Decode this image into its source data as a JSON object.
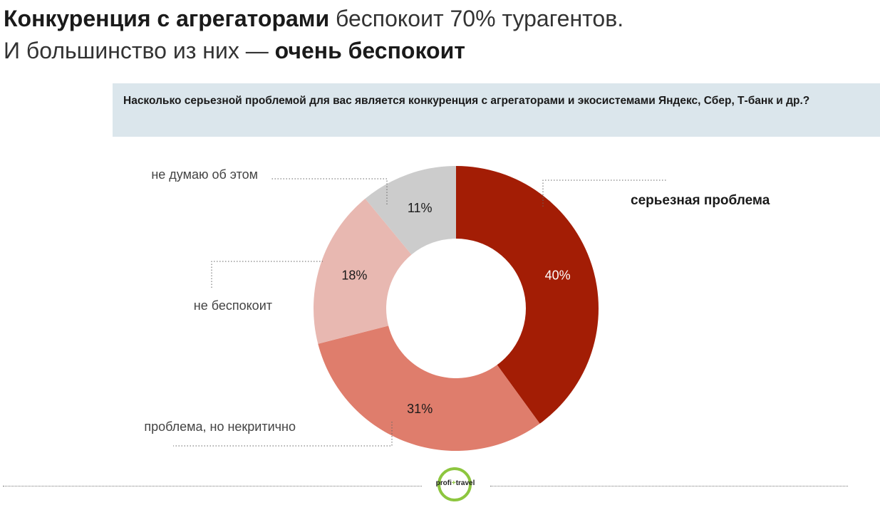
{
  "headline": {
    "line1_bold": "Конкуренция с агрегаторами",
    "line1_rest": " беспокоит 70% турагентов.",
    "line2_rest": "И большинство из них — ",
    "line2_bold": "очень беспокоит"
  },
  "question": "Насколько серьезной проблемой для вас является конкуренция с агрегаторами и экосистемами Яндекс, Сбер, Т-банк и др.?",
  "chart_data": {
    "type": "pie",
    "variant": "donut",
    "categories": [
      "серьезная проблема",
      "проблема, но некритично",
      "не беспокоит",
      "не думаю об этом"
    ],
    "values": [
      40,
      31,
      18,
      11
    ],
    "value_labels": [
      "40%",
      "31%",
      "18%",
      "11%"
    ],
    "colors": [
      "#a31d05",
      "#df7d6c",
      "#e8b8b1",
      "#cccccc"
    ],
    "label_colors": [
      "#ffffff",
      "#1a1a1a",
      "#1a1a1a",
      "#1a1a1a"
    ],
    "start_angle_deg": 0,
    "direction": "clockwise"
  },
  "logo": {
    "left": "profi",
    "plus": "+",
    "right": "travel"
  }
}
